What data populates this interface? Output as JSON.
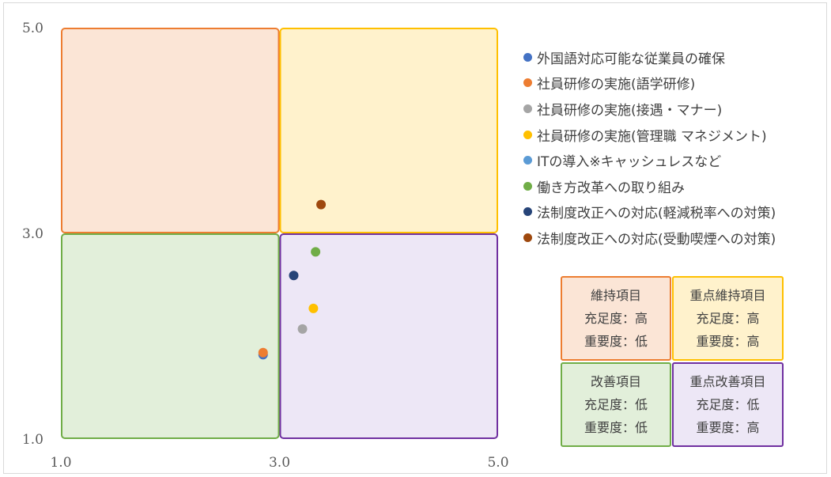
{
  "chart_data": {
    "type": "scatter",
    "xlim": [
      1.0,
      5.0
    ],
    "ylim": [
      1.0,
      5.0
    ],
    "x_ticks": [
      "1.0",
      "3.0",
      "5.0"
    ],
    "y_ticks": [
      "1.0",
      "3.0",
      "5.0"
    ],
    "grid": false,
    "legend_position": "right",
    "series": [
      {
        "name": "外国語対応可能な従業員の確保",
        "color": "#4472c4",
        "points": [
          {
            "x": 2.85,
            "y": 1.82
          }
        ]
      },
      {
        "name": "社員研修の実施(語学研修)",
        "color": "#ed7d31",
        "points": [
          {
            "x": 2.85,
            "y": 1.84
          }
        ]
      },
      {
        "name": "社員研修の実施(接遇・マナー)",
        "color": "#a5a5a5",
        "points": [
          {
            "x": 3.21,
            "y": 2.07
          }
        ]
      },
      {
        "name": "社員研修の実施(管理職 マネジメント)",
        "color": "#ffc000",
        "points": [
          {
            "x": 3.31,
            "y": 2.27
          }
        ]
      },
      {
        "name": "ITの導入※キャッシュレスなど",
        "color": "#5b9bd5",
        "points": []
      },
      {
        "name": "働き方改革への取り組み",
        "color": "#70ad47",
        "points": [
          {
            "x": 3.33,
            "y": 2.82
          }
        ]
      },
      {
        "name": "法制度改正への対応(軽減税率への対策)",
        "color": "#264478",
        "points": [
          {
            "x": 3.13,
            "y": 2.59
          }
        ]
      },
      {
        "name": "法制度改正への対応(受動喫煙への対策)",
        "color": "#9e480e",
        "points": [
          {
            "x": 3.38,
            "y": 3.28
          }
        ]
      }
    ],
    "quadrants": [
      {
        "id": "top-left",
        "x_range": [
          1.0,
          3.0
        ],
        "y_range": [
          3.0,
          5.0
        ],
        "fill": "#fbe5d6",
        "stroke": "#ed7d31"
      },
      {
        "id": "top-right",
        "x_range": [
          3.0,
          5.0
        ],
        "y_range": [
          3.0,
          5.0
        ],
        "fill": "#fff2cc",
        "stroke": "#ffc000"
      },
      {
        "id": "bottom-left",
        "x_range": [
          1.0,
          3.0
        ],
        "y_range": [
          1.0,
          3.0
        ],
        "fill": "#e2efda",
        "stroke": "#70ad47"
      },
      {
        "id": "bottom-right",
        "x_range": [
          3.0,
          5.0
        ],
        "y_range": [
          1.0,
          3.0
        ],
        "fill": "#ede7f6",
        "stroke": "#7030a0"
      }
    ]
  },
  "key_boxes": {
    "maintain": {
      "title": "維持項目",
      "line1": "充足度：高",
      "line2": "重要度：低",
      "fill": "#fbe5d6",
      "stroke": "#ed7d31"
    },
    "priority_maintain": {
      "title": "重点維持項目",
      "line1": "充足度：高",
      "line2": "重要度：高",
      "fill": "#fff2cc",
      "stroke": "#ffc000"
    },
    "improve": {
      "title": "改善項目",
      "line1": "充足度：低",
      "line2": "重要度：低",
      "fill": "#e2efda",
      "stroke": "#70ad47"
    },
    "priority_improve": {
      "title": "重点改善項目",
      "line1": "充足度：低",
      "line2": "重要度：高",
      "fill": "#ede7f6",
      "stroke": "#7030a0"
    }
  }
}
